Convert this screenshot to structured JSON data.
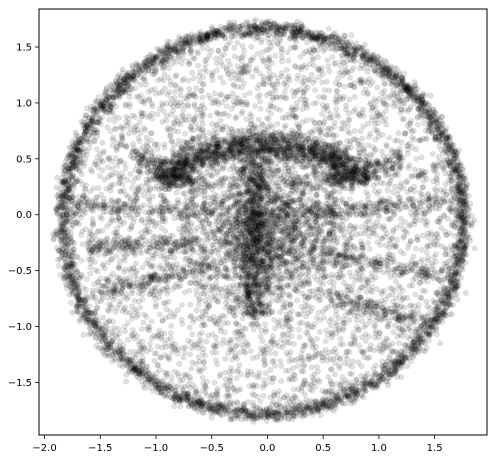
{
  "chart_data": {
    "type": "scatter",
    "title": "",
    "xlabel": "",
    "ylabel": "",
    "xlim": [
      -2.05,
      1.97
    ],
    "ylim": [
      -1.97,
      1.84
    ],
    "grid": false,
    "legend": "none",
    "x_ticks": [
      -2.0,
      -1.5,
      -1.0,
      -0.5,
      0.0,
      0.5,
      1.0,
      1.5
    ],
    "x_tick_labels": [
      "−2.0",
      "−1.5",
      "−1.0",
      "−0.5",
      "0.0",
      "0.5",
      "1.0",
      "1.5"
    ],
    "y_ticks": [
      -1.5,
      -1.0,
      -0.5,
      0.0,
      0.5,
      1.0,
      1.5
    ],
    "y_tick_labels": [
      "−1.5",
      "−1.0",
      "−0.5",
      "0.0",
      "0.5",
      "1.0",
      "1.5"
    ],
    "marker_color": "#000000",
    "marker_alpha": 0.12,
    "series": [
      {
        "description_points": "dense ring of points near radius 1.75 forming a circular outline, with interior clusters",
        "x": [
          -1.86,
          -1.8,
          -1.62,
          -1.3,
          -0.9,
          -0.5,
          -0.1,
          0.0,
          0.3,
          0.7,
          1.1,
          1.45,
          1.7,
          1.82,
          1.86,
          1.78,
          1.55,
          1.2,
          0.8,
          0.4,
          0.0,
          -0.4,
          -0.8,
          -1.2,
          -1.55,
          -1.78,
          -1.2,
          -0.8,
          -0.4,
          0.0,
          0.3,
          0.6,
          1.0,
          -0.6,
          -0.2,
          0.1,
          0.5,
          0.9,
          -1.0,
          -0.3,
          0.2,
          0.7,
          -0.5,
          0.0,
          0.4
        ],
        "y": [
          0.0,
          0.5,
          0.95,
          1.3,
          1.55,
          1.68,
          1.66,
          1.67,
          1.64,
          1.52,
          1.28,
          0.95,
          0.55,
          0.1,
          -0.3,
          -0.7,
          -1.15,
          -1.45,
          -1.65,
          -1.75,
          -1.77,
          -1.74,
          -1.62,
          -1.4,
          -1.05,
          -0.55,
          0.1,
          0.5,
          0.9,
          0.25,
          0.7,
          0.3,
          -0.1,
          -0.3,
          -0.2,
          0.05,
          -0.4,
          -0.6,
          -0.8,
          -0.9,
          -1.0,
          -0.9,
          0.35,
          -0.5,
          0.55
        ]
      }
    ]
  }
}
